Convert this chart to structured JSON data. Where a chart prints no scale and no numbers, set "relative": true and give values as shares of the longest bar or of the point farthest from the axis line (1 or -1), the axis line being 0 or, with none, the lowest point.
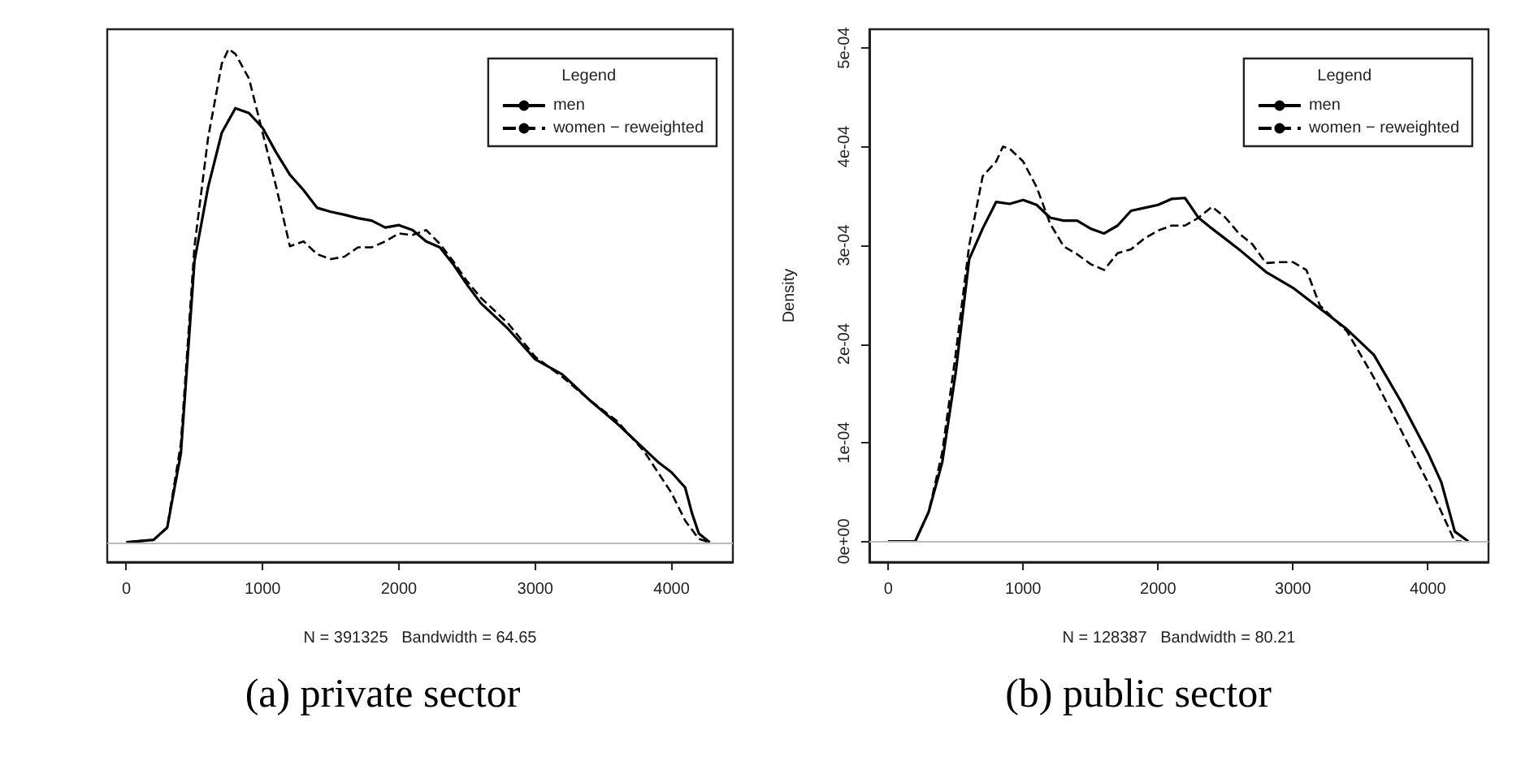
{
  "chart_data": [
    {
      "type": "line",
      "relative": true,
      "xlabel": "N = 391325   Bandwidth = 64.65",
      "legend_title": "Legend",
      "legend": "top right",
      "grid": false,
      "marker": "none",
      "annotations": [
        "(a) private sector"
      ],
      "xlim": [
        -140,
        4450
      ],
      "xticks": [
        0,
        1000,
        2000,
        3000,
        4000
      ],
      "ref_lines": [
        {
          "axis": "y",
          "value": 0,
          "color": "#bbbbbb"
        }
      ],
      "series": [
        {
          "name": "men",
          "color": "#000000",
          "line_style": "solid",
          "x": [
            0,
            200,
            300,
            400,
            500,
            600,
            700,
            800,
            900,
            1000,
            1100,
            1200,
            1300,
            1400,
            1500,
            1600,
            1700,
            1800,
            1900,
            2000,
            2100,
            2200,
            2300,
            2400,
            2500,
            2600,
            2800,
            3000,
            3200,
            3400,
            3600,
            3800,
            3900,
            4000,
            4100,
            4150,
            4200,
            4280
          ],
          "values": [
            0,
            0.005,
            0.03,
            0.18,
            0.57,
            0.72,
            0.83,
            0.88,
            0.87,
            0.84,
            0.79,
            0.745,
            0.714,
            0.678,
            0.67,
            0.664,
            0.657,
            0.652,
            0.638,
            0.643,
            0.633,
            0.61,
            0.598,
            0.563,
            0.522,
            0.485,
            0.433,
            0.371,
            0.34,
            0.288,
            0.241,
            0.189,
            0.163,
            0.142,
            0.111,
            0.059,
            0.018,
            0
          ]
        },
        {
          "name": "women − reweighted",
          "color": "#000000",
          "line_style": "dashed",
          "x": [
            0,
            200,
            300,
            400,
            500,
            600,
            700,
            750,
            800,
            900,
            1000,
            1100,
            1200,
            1300,
            1400,
            1500,
            1600,
            1700,
            1800,
            1900,
            2000,
            2100,
            2200,
            2300,
            2400,
            2500,
            2600,
            2800,
            3000,
            3200,
            3400,
            3600,
            3800,
            4000,
            4100,
            4200,
            4280
          ],
          "values": [
            0,
            0.005,
            0.03,
            0.2,
            0.6,
            0.82,
            0.97,
            1,
            0.99,
            0.94,
            0.83,
            0.72,
            0.6,
            0.61,
            0.584,
            0.574,
            0.579,
            0.598,
            0.598,
            0.61,
            0.626,
            0.623,
            0.633,
            0.605,
            0.569,
            0.529,
            0.496,
            0.444,
            0.376,
            0.335,
            0.288,
            0.246,
            0.184,
            0.1,
            0.044,
            0.007,
            0
          ]
        }
      ]
    },
    {
      "type": "line",
      "xlabel": "N = 128387   Bandwidth = 80.21",
      "ylabel": "Density",
      "legend_title": "Legend",
      "legend": "top right",
      "grid": false,
      "marker": "none",
      "annotations": [
        "(b) public sector"
      ],
      "xlim": [
        -140,
        4450
      ],
      "xticks": [
        0,
        1000,
        2000,
        3000,
        4000
      ],
      "ylim": [
        -2.1e-05,
        0.000519
      ],
      "yticks": [
        {
          "value": 0,
          "label": "0e+00"
        },
        {
          "value": 0.0001,
          "label": "1e-04"
        },
        {
          "value": 0.0002,
          "label": "2e-04"
        },
        {
          "value": 0.0003,
          "label": "3e-04"
        },
        {
          "value": 0.0004,
          "label": "4e-04"
        },
        {
          "value": 0.0005,
          "label": "5e-04"
        }
      ],
      "ref_lines": [
        {
          "axis": "y",
          "value": 0,
          "color": "#bbbbbb"
        }
      ],
      "series": [
        {
          "name": "men",
          "color": "#000000",
          "line_style": "solid",
          "x": [
            0,
            200,
            300,
            400,
            500,
            600,
            700,
            800,
            900,
            1000,
            1100,
            1200,
            1300,
            1400,
            1500,
            1600,
            1700,
            1800,
            1900,
            2000,
            2100,
            2200,
            2300,
            2400,
            2600,
            2800,
            3000,
            3200,
            3400,
            3600,
            3800,
            4000,
            4100,
            4200,
            4300
          ],
          "values": [
            0,
            0,
            3e-05,
            8e-05,
            0.000171,
            0.000286,
            0.000317,
            0.000344,
            0.000342,
            0.000346,
            0.000341,
            0.000328,
            0.000325,
            0.000325,
            0.000317,
            0.000312,
            0.00032,
            0.000335,
            0.000338,
            0.000341,
            0.000347,
            0.000348,
            0.000328,
            0.000317,
            0.000296,
            0.000273,
            0.000257,
            0.000236,
            0.000215,
            0.000189,
            0.000142,
            9e-05,
            6e-05,
            1e-05,
            0
          ]
        },
        {
          "name": "women − reweighted",
          "color": "#000000",
          "line_style": "dashed",
          "x": [
            0,
            200,
            300,
            400,
            500,
            600,
            700,
            800,
            850,
            900,
            1000,
            1100,
            1200,
            1300,
            1400,
            1500,
            1600,
            1700,
            1800,
            1900,
            2000,
            2100,
            2200,
            2300,
            2400,
            2500,
            2600,
            2700,
            2800,
            2900,
            3000,
            3100,
            3200,
            3400,
            3600,
            3800,
            4000,
            4100,
            4200,
            4250
          ],
          "values": [
            0,
            0,
            3e-05,
            9e-05,
            0.00019,
            0.0003,
            0.00037,
            0.000385,
            0.0004,
            0.000398,
            0.000385,
            0.000359,
            0.000322,
            0.000299,
            0.000291,
            0.000281,
            0.000275,
            0.000292,
            0.000296,
            0.000307,
            0.000315,
            0.00032,
            0.00032,
            0.000328,
            0.000339,
            0.000328,
            0.000312,
            0.000301,
            0.000282,
            0.000283,
            0.000283,
            0.000275,
            0.000239,
            0.000213,
            0.000166,
            0.000113,
            6e-05,
            3e-05,
            0,
            0
          ]
        }
      ]
    }
  ]
}
